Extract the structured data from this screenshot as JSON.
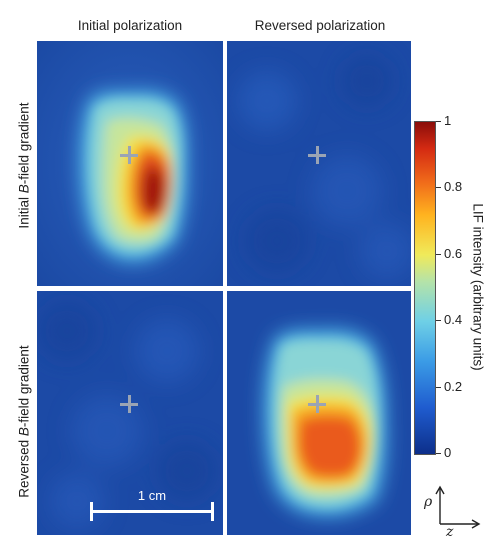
{
  "figure": {
    "column_titles": [
      "Initial polarization",
      "Reversed polarization"
    ],
    "row_titles": [
      {
        "prefix": "Initial ",
        "italic": "B",
        "suffix": "-field gradient"
      },
      {
        "prefix": "Reversed ",
        "italic": "B",
        "suffix": "-field gradient"
      }
    ],
    "panels": [
      {
        "row": 0,
        "col": 0,
        "name": "initial-polarization-initial-gradient",
        "signal": "strong"
      },
      {
        "row": 0,
        "col": 1,
        "name": "reversed-polarization-initial-gradient",
        "signal": "none"
      },
      {
        "row": 1,
        "col": 0,
        "name": "initial-polarization-reversed-gradient",
        "signal": "none"
      },
      {
        "row": 1,
        "col": 1,
        "name": "reversed-polarization-reversed-gradient",
        "signal": "strong"
      }
    ],
    "scalebar": {
      "label": "1 cm"
    },
    "colorbar": {
      "title": "LIF intensity (arbitrary units)",
      "ticks": [
        "0",
        "0.2",
        "0.4",
        "0.6",
        "0.8",
        "1"
      ],
      "colors": [
        "#0d2f8a",
        "#1f5ccf",
        "#3b9ce6",
        "#6fd0e6",
        "#b5e3a8",
        "#f0ea5a",
        "#ffb31f",
        "#f06a1a",
        "#d42a12",
        "#8a0d0a"
      ]
    },
    "axes": {
      "vertical": "ρ",
      "horizontal": "z"
    },
    "marker": "cross-icon"
  }
}
